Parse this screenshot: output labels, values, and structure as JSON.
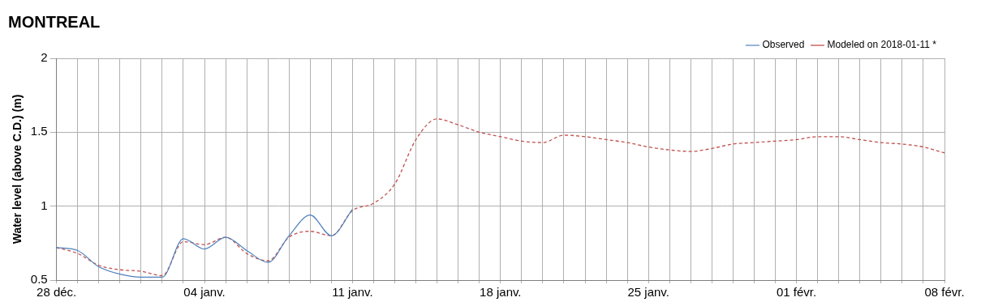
{
  "chart_data": {
    "type": "line",
    "title": "MONTREAL",
    "y_label": "Water level (above C.D.) (m)",
    "categories": [
      "28 déc.",
      null,
      null,
      null,
      null,
      null,
      null,
      "04 janv.",
      null,
      null,
      null,
      null,
      null,
      null,
      "11 janv.",
      null,
      null,
      null,
      null,
      null,
      null,
      "18 janv.",
      null,
      null,
      null,
      null,
      null,
      null,
      "25 janv.",
      null,
      null,
      null,
      null,
      null,
      null,
      "01 févr.",
      null,
      null,
      null,
      null,
      null,
      null,
      "08 févr."
    ],
    "series": [
      {
        "name": "Observed",
        "color": "#4f81bd",
        "line_style": "solid",
        "values": [
          0.72,
          0.7,
          0.59,
          0.54,
          0.52,
          0.52,
          0.78,
          0.71,
          0.79,
          0.7,
          0.62,
          0.8,
          0.94,
          0.8,
          0.98,
          null,
          null,
          null,
          null,
          null,
          null,
          null,
          null,
          null,
          null,
          null,
          null,
          null,
          null,
          null,
          null,
          null,
          null,
          null,
          null,
          null,
          null,
          null,
          null,
          null,
          null,
          null,
          null
        ]
      },
      {
        "name": "Modeled on 2018-01-11 *",
        "color": "#c0504d",
        "line_style": "dashed",
        "values": [
          0.72,
          0.68,
          0.6,
          0.57,
          0.56,
          0.53,
          0.76,
          0.74,
          0.79,
          0.68,
          0.63,
          0.79,
          0.83,
          0.8,
          0.97,
          1.02,
          1.15,
          1.45,
          1.59,
          1.55,
          1.5,
          1.47,
          1.44,
          1.43,
          1.48,
          1.47,
          1.45,
          1.43,
          1.4,
          1.38,
          1.37,
          1.39,
          1.42,
          1.43,
          1.44,
          1.45,
          1.47,
          1.47,
          1.45,
          1.43,
          1.42,
          1.4,
          1.36
        ]
      }
    ],
    "ylim": [
      0.5,
      2
    ],
    "yticks": [
      0.5,
      1,
      1.5,
      2
    ],
    "grid": true,
    "legend": "upper right"
  }
}
